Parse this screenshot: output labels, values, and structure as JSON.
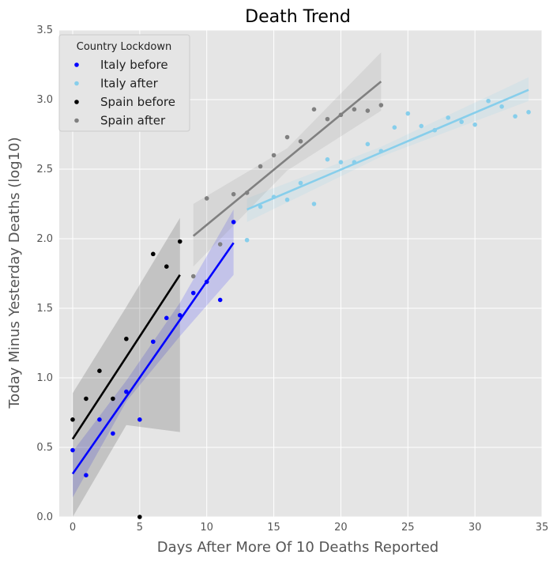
{
  "chart_data": {
    "type": "scatter",
    "title": "Death Trend",
    "xlabel": "Days After More Of 10 Deaths Reported",
    "ylabel": "Today Minus Yesterday Deaths (log10)",
    "xlim": [
      -1,
      35
    ],
    "ylim": [
      0,
      3.5
    ],
    "xticks": [
      0,
      5,
      10,
      15,
      20,
      25,
      30,
      35
    ],
    "yticks": [
      0.0,
      0.5,
      1.0,
      1.5,
      2.0,
      2.5,
      3.0,
      3.5
    ],
    "xtick_labels": [
      "0",
      "5",
      "10",
      "15",
      "20",
      "25",
      "30",
      "35"
    ],
    "ytick_labels": [
      "0.0",
      "0.5",
      "1.0",
      "1.5",
      "2.0",
      "2.5",
      "3.0",
      "3.5"
    ],
    "grid": true,
    "legend": {
      "title": "Country Lockdown",
      "placement": "top-left"
    },
    "series": [
      {
        "name": "Italy before",
        "color": "#0000ff",
        "band_color": "#0000ff",
        "x": [
          0,
          1,
          2,
          3,
          4,
          5,
          6,
          7,
          8,
          9,
          10,
          11,
          12
        ],
        "y": [
          0.48,
          0.3,
          0.7,
          0.6,
          0.9,
          0.7,
          1.26,
          1.43,
          1.45,
          1.61,
          1.69,
          1.56,
          2.12
        ],
        "fit": {
          "x": [
            0,
            12
          ],
          "y": [
            0.31,
            1.97
          ]
        },
        "band": {
          "x": [
            0,
            4,
            8,
            12
          ],
          "lower": [
            0.14,
            0.83,
            1.3,
            1.74
          ],
          "upper": [
            0.47,
            0.98,
            1.54,
            2.21
          ]
        }
      },
      {
        "name": "Italy after",
        "color": "#87ceeb",
        "band_color": "#87ceeb",
        "x": [
          13,
          14,
          15,
          16,
          17,
          18,
          19,
          20,
          21,
          22,
          23,
          24,
          25,
          26,
          27,
          28,
          29,
          30,
          31,
          32,
          33,
          34
        ],
        "y": [
          1.99,
          2.23,
          2.3,
          2.28,
          2.4,
          2.25,
          2.57,
          2.55,
          2.55,
          2.68,
          2.63,
          2.8,
          2.9,
          2.81,
          2.78,
          2.87,
          2.84,
          2.82,
          2.99,
          2.95,
          2.88,
          2.91
        ],
        "fit": {
          "x": [
            13,
            34
          ],
          "y": [
            2.21,
            3.07
          ]
        },
        "band": {
          "x": [
            13,
            23,
            34
          ],
          "lower": [
            2.12,
            2.59,
            2.99
          ],
          "upper": [
            2.29,
            2.66,
            3.16
          ]
        }
      },
      {
        "name": "Spain before",
        "color": "#000000",
        "band_color": "#000000",
        "x": [
          0,
          1,
          2,
          3,
          4,
          5,
          6,
          7,
          8
        ],
        "y": [
          0.7,
          0.85,
          1.05,
          0.85,
          1.28,
          0.0,
          1.89,
          1.8,
          1.98
        ],
        "fit": {
          "x": [
            0,
            8
          ],
          "y": [
            0.56,
            1.74
          ]
        },
        "band": {
          "x": [
            0,
            4,
            8
          ],
          "lower": [
            0.0,
            0.66,
            0.61
          ],
          "upper": [
            0.89,
            1.51,
            2.15
          ]
        }
      },
      {
        "name": "Spain after",
        "color": "#808080",
        "band_color": "#808080",
        "x": [
          9,
          10,
          11,
          12,
          13,
          14,
          15,
          16,
          17,
          18,
          19,
          20,
          21,
          22,
          23
        ],
        "y": [
          1.73,
          2.29,
          1.96,
          2.32,
          2.33,
          2.52,
          2.6,
          2.73,
          2.7,
          2.93,
          2.86,
          2.89,
          2.93,
          2.92,
          2.96
        ],
        "fit": {
          "x": [
            9,
            23
          ],
          "y": [
            2.02,
            3.13
          ]
        },
        "band": {
          "x": [
            9,
            16,
            23
          ],
          "lower": [
            1.8,
            2.49,
            2.92
          ],
          "upper": [
            2.25,
            2.65,
            3.34
          ]
        }
      }
    ]
  }
}
